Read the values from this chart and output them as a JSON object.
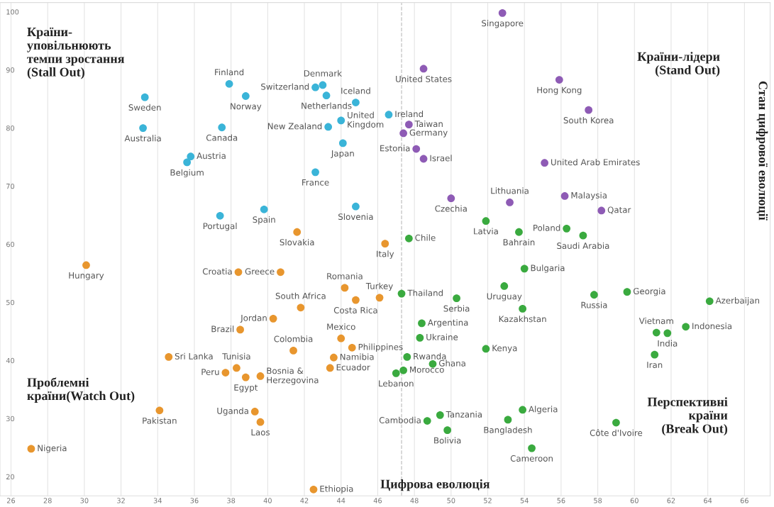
{
  "chart_data": {
    "type": "scatter",
    "xlabel": "Цифрова еволюція",
    "ylabel": "Стан цифрової еволюції",
    "xlim": [
      25.4,
      67.4
    ],
    "ylim": [
      16.7,
      101.6
    ],
    "xticks": [
      26,
      28,
      30,
      32,
      34,
      36,
      38,
      40,
      42,
      44,
      46,
      48,
      50,
      52,
      54,
      56,
      58,
      60,
      62,
      64,
      66
    ],
    "yticks": [
      20,
      30,
      40,
      50,
      60,
      70,
      80,
      90,
      100
    ],
    "grid": "x",
    "marker": "circle",
    "series": [
      {
        "color": "#3ab4d8",
        "x": [
          33.3,
          33.2,
          37.9,
          38.8,
          37.5,
          35.8,
          35.6,
          42.6,
          43.0,
          43.2,
          44.8,
          46.6,
          43.3,
          44.0,
          44.1,
          42.6,
          44.8,
          39.8,
          37.4
        ],
        "values": [
          85.3,
          80.0,
          87.6,
          85.5,
          80.1,
          75.1,
          74.1,
          87.0,
          87.4,
          85.6,
          84.4,
          82.3,
          80.2,
          81.3,
          77.4,
          72.4,
          66.5,
          66.0,
          64.9
        ]
      },
      {
        "color": "#8e5bb5",
        "x": [
          52.8,
          48.5,
          55.9,
          57.5,
          47.7,
          47.4,
          48.1,
          48.5,
          55.1,
          50.0,
          53.2,
          56.2,
          58.2
        ],
        "values": [
          99.8,
          90.2,
          88.3,
          83.1,
          80.6,
          79.1,
          76.4,
          74.7,
          74.0,
          67.9,
          67.2,
          68.3,
          65.8
        ]
      },
      {
        "color": "#3aaa3f",
        "x": [
          51.9,
          56.3,
          57.2,
          53.7,
          47.7,
          54.0,
          52.9,
          47.3,
          50.3,
          57.8,
          59.6,
          64.1,
          53.9,
          48.4,
          61.2,
          61.8,
          62.8,
          48.3,
          51.9,
          61.1,
          47.6,
          49.0,
          47.4,
          47.0,
          48.7,
          49.4,
          53.9,
          53.1,
          49.8,
          59.0,
          54.4
        ],
        "values": [
          64.0,
          62.7,
          61.5,
          62.1,
          61.0,
          55.8,
          52.8,
          51.5,
          50.7,
          51.3,
          51.8,
          50.2,
          48.9,
          46.4,
          44.8,
          44.7,
          45.8,
          43.9,
          42.0,
          41.0,
          40.6,
          39.4,
          38.3,
          37.8,
          29.6,
          30.6,
          31.5,
          29.8,
          28.0,
          29.3,
          24.9
        ]
      },
      {
        "color": "#e8962e",
        "x": [
          30.1,
          41.6,
          46.4,
          38.4,
          40.7,
          44.2,
          46.1,
          44.8,
          41.8,
          40.3,
          38.5,
          44.0,
          44.6,
          41.4,
          43.6,
          34.6,
          43.4,
          38.3,
          37.7,
          38.8,
          39.6,
          34.1,
          39.3,
          39.6,
          27.1,
          42.5
        ],
        "values": [
          56.4,
          62.1,
          60.1,
          55.2,
          55.2,
          52.5,
          50.8,
          50.4,
          49.1,
          47.2,
          45.3,
          43.8,
          42.2,
          41.7,
          40.5,
          40.6,
          38.7,
          38.7,
          37.9,
          37.1,
          37.3,
          31.4,
          31.2,
          29.4,
          24.8,
          17.8
        ]
      }
    ],
    "ref_lines": [
      {
        "axis": "x",
        "value": 47.3,
        "label": null,
        "color": "#c8c8c8",
        "line_style": "dashed"
      }
    ],
    "annotations": [
      {
        "text": "Sweden",
        "x": 33.3,
        "y": 85.3
      },
      {
        "text": "Australia",
        "x": 33.2,
        "y": 80.0
      },
      {
        "text": "Finland",
        "x": 37.9,
        "y": 87.6
      },
      {
        "text": "Norway",
        "x": 38.8,
        "y": 85.5
      },
      {
        "text": "Canada",
        "x": 37.5,
        "y": 80.1
      },
      {
        "text": "Austria",
        "x": 35.8,
        "y": 75.1
      },
      {
        "text": "Belgium",
        "x": 35.6,
        "y": 74.1
      },
      {
        "text": "Switzerland",
        "x": 42.6,
        "y": 87.0
      },
      {
        "text": "Denmark",
        "x": 43.0,
        "y": 87.4
      },
      {
        "text": "Netherlands",
        "x": 43.2,
        "y": 85.6
      },
      {
        "text": "Iceland",
        "x": 44.8,
        "y": 84.4
      },
      {
        "text": "Ireland",
        "x": 46.6,
        "y": 82.3
      },
      {
        "text": "New Zealand",
        "x": 43.3,
        "y": 80.2
      },
      {
        "text": "United\nKingdom",
        "x": 44.0,
        "y": 81.3
      },
      {
        "text": "Japan",
        "x": 44.1,
        "y": 77.4
      },
      {
        "text": "France",
        "x": 42.6,
        "y": 72.4
      },
      {
        "text": "Slovenia",
        "x": 44.8,
        "y": 66.5
      },
      {
        "text": "Spain",
        "x": 39.8,
        "y": 66.0
      },
      {
        "text": "Portugal",
        "x": 37.4,
        "y": 64.9
      },
      {
        "text": "Singapore",
        "x": 52.8,
        "y": 99.8
      },
      {
        "text": "United States",
        "x": 48.5,
        "y": 90.2
      },
      {
        "text": "Hong Kong",
        "x": 55.9,
        "y": 88.3
      },
      {
        "text": "South Korea",
        "x": 57.5,
        "y": 83.1
      },
      {
        "text": "Taiwan",
        "x": 47.7,
        "y": 80.6
      },
      {
        "text": "Germany",
        "x": 47.4,
        "y": 79.1
      },
      {
        "text": "Estonia",
        "x": 48.1,
        "y": 76.4
      },
      {
        "text": "Israel",
        "x": 48.5,
        "y": 74.7
      },
      {
        "text": "United Arab Emirates",
        "x": 55.1,
        "y": 74.0
      },
      {
        "text": "Czechia",
        "x": 50.0,
        "y": 67.9
      },
      {
        "text": "Lithuania",
        "x": 53.2,
        "y": 67.2
      },
      {
        "text": "Malaysia",
        "x": 56.2,
        "y": 68.3
      },
      {
        "text": "Qatar",
        "x": 58.2,
        "y": 65.8
      },
      {
        "text": "Latvia",
        "x": 51.9,
        "y": 64.0
      },
      {
        "text": "Poland",
        "x": 56.3,
        "y": 62.7
      },
      {
        "text": "Saudi Arabia",
        "x": 57.2,
        "y": 61.5
      },
      {
        "text": "Bahrain",
        "x": 53.7,
        "y": 62.1
      },
      {
        "text": "Chile",
        "x": 47.7,
        "y": 61.0
      },
      {
        "text": "Bulgaria",
        "x": 54.0,
        "y": 55.8
      },
      {
        "text": "Uruguay",
        "x": 52.9,
        "y": 52.8
      },
      {
        "text": "Thailand",
        "x": 47.3,
        "y": 51.5
      },
      {
        "text": "Serbia",
        "x": 50.3,
        "y": 50.7
      },
      {
        "text": "Russia",
        "x": 57.8,
        "y": 51.3
      },
      {
        "text": "Georgia",
        "x": 59.6,
        "y": 51.8
      },
      {
        "text": "Azerbaijan",
        "x": 64.1,
        "y": 50.2
      },
      {
        "text": "Kazakhstan",
        "x": 53.9,
        "y": 48.9
      },
      {
        "text": "Argentina",
        "x": 48.4,
        "y": 46.4
      },
      {
        "text": "Vietnam",
        "x": 61.2,
        "y": 44.8
      },
      {
        "text": "India",
        "x": 61.8,
        "y": 44.7
      },
      {
        "text": "Indonesia",
        "x": 62.8,
        "y": 45.8
      },
      {
        "text": "Ukraine",
        "x": 48.3,
        "y": 43.9
      },
      {
        "text": "Kenya",
        "x": 51.9,
        "y": 42.0
      },
      {
        "text": "Iran",
        "x": 61.1,
        "y": 41.0
      },
      {
        "text": "Rwanda",
        "x": 47.6,
        "y": 40.6
      },
      {
        "text": "Ghana",
        "x": 49.0,
        "y": 39.4
      },
      {
        "text": "Morocco",
        "x": 47.4,
        "y": 38.3
      },
      {
        "text": "Lebanon",
        "x": 47.0,
        "y": 37.8
      },
      {
        "text": "Cambodia",
        "x": 48.7,
        "y": 29.6
      },
      {
        "text": "Tanzania",
        "x": 49.4,
        "y": 30.6
      },
      {
        "text": "Algeria",
        "x": 53.9,
        "y": 31.5
      },
      {
        "text": "Bangladesh",
        "x": 53.1,
        "y": 29.8
      },
      {
        "text": "Bolivia",
        "x": 49.8,
        "y": 28.0
      },
      {
        "text": "Côte d'Ivoire",
        "x": 59.0,
        "y": 29.3
      },
      {
        "text": "Cameroon",
        "x": 54.4,
        "y": 24.9
      },
      {
        "text": "Hungary",
        "x": 30.1,
        "y": 56.4
      },
      {
        "text": "Slovakia",
        "x": 41.6,
        "y": 62.1
      },
      {
        "text": "Italy",
        "x": 46.4,
        "y": 60.1
      },
      {
        "text": "Croatia",
        "x": 38.4,
        "y": 55.2
      },
      {
        "text": "Greece",
        "x": 40.7,
        "y": 55.2
      },
      {
        "text": "Romania",
        "x": 44.2,
        "y": 52.5
      },
      {
        "text": "Turkey",
        "x": 46.1,
        "y": 50.8
      },
      {
        "text": "Costa Rica",
        "x": 44.8,
        "y": 50.4
      },
      {
        "text": "South Africa",
        "x": 41.8,
        "y": 49.1
      },
      {
        "text": "Jordan",
        "x": 40.3,
        "y": 47.2
      },
      {
        "text": "Brazil",
        "x": 38.5,
        "y": 45.3
      },
      {
        "text": "Mexico",
        "x": 44.0,
        "y": 43.8
      },
      {
        "text": "Philippines",
        "x": 44.6,
        "y": 42.2
      },
      {
        "text": "Colombia",
        "x": 41.4,
        "y": 41.7
      },
      {
        "text": "Namibia",
        "x": 43.6,
        "y": 40.5
      },
      {
        "text": "Sri Lanka",
        "x": 34.6,
        "y": 40.6
      },
      {
        "text": "Ecuador",
        "x": 43.4,
        "y": 38.7
      },
      {
        "text": "Tunisia",
        "x": 38.3,
        "y": 38.7
      },
      {
        "text": "Peru",
        "x": 37.7,
        "y": 37.9
      },
      {
        "text": "Egypt",
        "x": 38.8,
        "y": 37.1
      },
      {
        "text": "Bosnia &\nHerzegovina",
        "x": 39.6,
        "y": 37.3
      },
      {
        "text": "Pakistan",
        "x": 34.1,
        "y": 31.4
      },
      {
        "text": "Uganda",
        "x": 39.3,
        "y": 31.2
      },
      {
        "text": "Laos",
        "x": 39.6,
        "y": 29.4
      },
      {
        "text": "Nigeria",
        "x": 27.1,
        "y": 24.8
      },
      {
        "text": "Ethiopia",
        "x": 42.5,
        "y": 17.8
      },
      "Країни-\nуповільнюють\nтемпи зростання\n(Stall Out)",
      "Країни-лідери\n(Stand Out)",
      "Проблемні\nкраїни(Watch Out)",
      "Перспективні\nкраїни\n(Break Out)"
    ]
  }
}
